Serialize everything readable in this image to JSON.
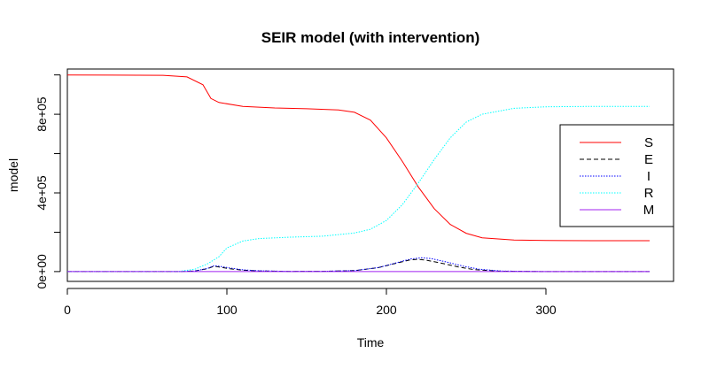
{
  "chart_data": {
    "type": "line",
    "title": "SEIR model (with intervention)",
    "xlabel": "Time",
    "ylabel": "model",
    "xlim": [
      0,
      380
    ],
    "ylim": [
      -50000,
      1030000
    ],
    "x_ticks": [
      0,
      100,
      200,
      300
    ],
    "y_ticks": [
      0,
      400000,
      800000
    ],
    "y_tick_labels": [
      "0e+00",
      "4e+05",
      "8e+05"
    ],
    "y_minor_ticks": [
      200000,
      600000,
      1000000
    ],
    "grid": false,
    "legend_position": "right",
    "series": [
      {
        "name": "S",
        "color": "#ff0000",
        "dash": "solid",
        "x": [
          0,
          60,
          75,
          85,
          90,
          95,
          110,
          130,
          150,
          170,
          180,
          190,
          200,
          210,
          220,
          230,
          240,
          250,
          260,
          280,
          300,
          330,
          365
        ],
        "y": [
          1000000,
          998000,
          990000,
          950000,
          880000,
          860000,
          840000,
          832000,
          828000,
          822000,
          810000,
          770000,
          680000,
          560000,
          430000,
          320000,
          240000,
          195000,
          172000,
          160000,
          158000,
          157000,
          157000
        ]
      },
      {
        "name": "E",
        "color": "#000000",
        "dash": "dashed",
        "x": [
          0,
          70,
          80,
          88,
          92,
          96,
          102,
          110,
          120,
          140,
          160,
          180,
          195,
          205,
          215,
          220,
          225,
          235,
          245,
          255,
          270,
          300,
          365
        ],
        "y": [
          0,
          0,
          3000,
          15000,
          28000,
          22000,
          14000,
          7000,
          3000,
          1000,
          1500,
          5000,
          20000,
          40000,
          60000,
          62000,
          58000,
          42000,
          24000,
          10000,
          2000,
          0,
          0
        ]
      },
      {
        "name": "I",
        "color": "#0000ff",
        "dash": "dotted",
        "x": [
          0,
          70,
          80,
          88,
          92,
          96,
          102,
          110,
          120,
          140,
          160,
          180,
          195,
          205,
          215,
          222,
          228,
          238,
          248,
          258,
          272,
          300,
          365
        ],
        "y": [
          0,
          0,
          3000,
          16000,
          30000,
          26000,
          18000,
          9000,
          4000,
          1000,
          1500,
          5000,
          20000,
          42000,
          64000,
          70000,
          66000,
          48000,
          28000,
          12000,
          2500,
          0,
          0
        ]
      },
      {
        "name": "R",
        "color": "#00ffff",
        "dash": "dotted",
        "x": [
          0,
          60,
          70,
          80,
          88,
          95,
          100,
          110,
          120,
          140,
          160,
          180,
          190,
          200,
          210,
          220,
          230,
          240,
          250,
          260,
          280,
          300,
          330,
          365
        ],
        "y": [
          0,
          0,
          1000,
          12000,
          40000,
          75000,
          120000,
          155000,
          168000,
          175000,
          180000,
          196000,
          215000,
          260000,
          340000,
          450000,
          570000,
          680000,
          760000,
          800000,
          830000,
          838000,
          840000,
          840000
        ]
      },
      {
        "name": "M",
        "color": "#a020f0",
        "dash": "solid",
        "x": [
          0,
          365
        ],
        "y": [
          0,
          0
        ]
      }
    ]
  }
}
